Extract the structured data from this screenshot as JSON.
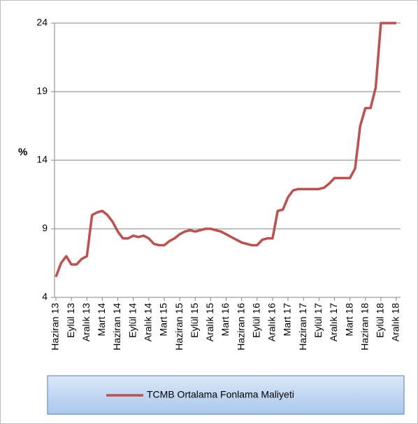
{
  "chart_data": {
    "type": "line",
    "y_label": "%",
    "categories": [
      "Haziran 13",
      null,
      null,
      "Eylül 13",
      null,
      null,
      "Aralık 13",
      null,
      null,
      "Mart 14",
      null,
      null,
      "Haziran 14",
      null,
      null,
      "Eylül 14",
      null,
      null,
      "Aralık 14",
      null,
      null,
      "Mart 15",
      null,
      null,
      "Haziran 15",
      null,
      null,
      "Eylül 15",
      null,
      null,
      "Aralık 15",
      null,
      null,
      "Mart 16",
      null,
      null,
      "Haziran 16",
      null,
      null,
      "Eylül 16",
      null,
      null,
      "Aralık 16",
      null,
      null,
      "Mart 17",
      null,
      null,
      "Haziran 17",
      null,
      null,
      "Eylül 17",
      null,
      null,
      "Aralık 17",
      null,
      null,
      "Mart 18",
      null,
      null,
      "Haziran 18",
      null,
      null,
      "Eylül 18",
      null,
      null,
      "Aralık 18"
    ],
    "series": [
      {
        "name": "TCMB Ortalama Fonlama Maliyeti",
        "color": "#c0504d",
        "values": [
          5.5,
          6.5,
          7.0,
          6.4,
          6.4,
          6.8,
          7.0,
          10.0,
          10.2,
          10.3,
          10.0,
          9.5,
          8.8,
          8.3,
          8.3,
          8.5,
          8.4,
          8.5,
          8.3,
          7.9,
          7.8,
          7.8,
          8.1,
          8.3,
          8.6,
          8.8,
          8.9,
          8.8,
          8.9,
          9.0,
          9.0,
          8.9,
          8.8,
          8.6,
          8.4,
          8.2,
          8.0,
          7.9,
          7.8,
          7.8,
          8.2,
          8.3,
          8.3,
          10.3,
          10.4,
          11.3,
          11.8,
          11.9,
          11.9,
          11.9,
          11.9,
          11.9,
          12.0,
          12.3,
          12.7,
          12.7,
          12.7,
          12.7,
          13.4,
          16.5,
          17.8,
          17.8,
          19.3,
          24.0,
          24.0,
          24.0,
          24.0
        ]
      }
    ],
    "ylim": [
      4,
      24
    ],
    "yticks": [
      4,
      9,
      14,
      19,
      24
    ],
    "grid": true
  }
}
